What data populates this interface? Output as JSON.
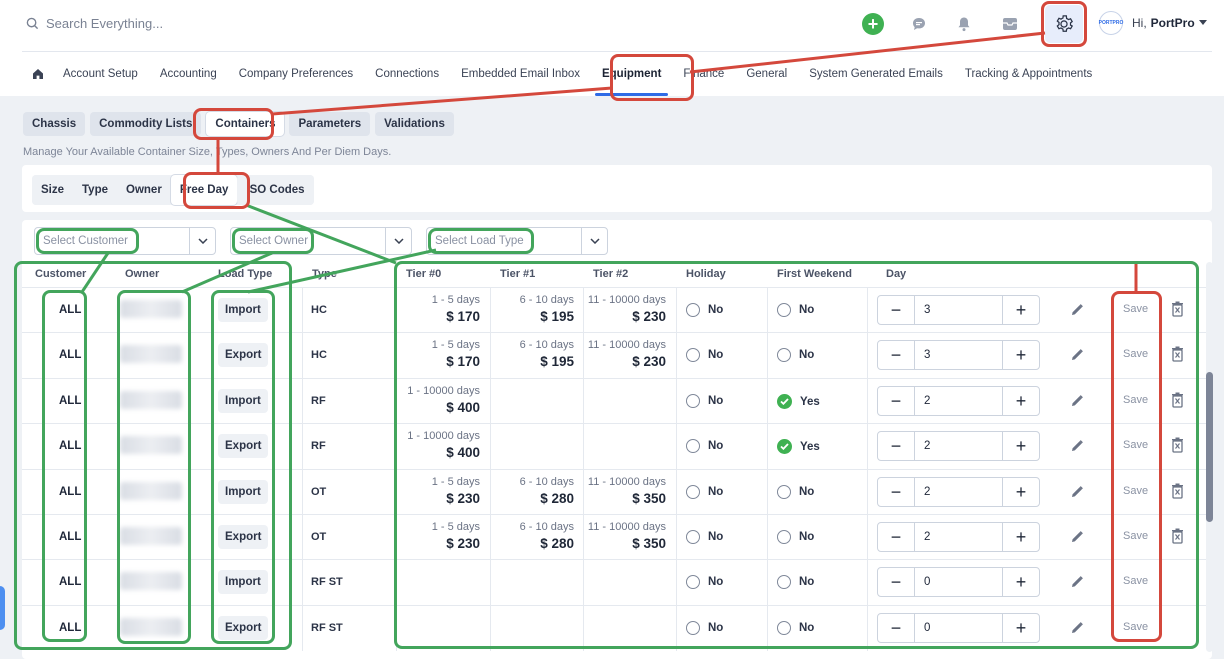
{
  "header": {
    "search_placeholder": "Search Everything...",
    "greeting_prefix": "Hi,",
    "user_name": "PortPro",
    "avatar_text": "PORTPRO"
  },
  "nav": {
    "items": [
      {
        "label": "Account Setup"
      },
      {
        "label": "Accounting"
      },
      {
        "label": "Company Preferences"
      },
      {
        "label": "Connections"
      },
      {
        "label": "Embedded Email Inbox"
      },
      {
        "label": "Equipment",
        "active": true
      },
      {
        "label": "Finance"
      },
      {
        "label": "General"
      },
      {
        "label": "System Generated Emails"
      },
      {
        "label": "Tracking & Appointments"
      }
    ]
  },
  "sub_tabs": [
    "Chassis",
    "Commodity Lists",
    "Containers",
    "Parameters",
    "Validations"
  ],
  "description": "Manage Your Available Container Size, Types, Owners And Per Diem Days.",
  "inner_tabs": [
    "Size",
    "Type",
    "Owner",
    "Free Day",
    "ISO Codes"
  ],
  "filters": {
    "customer_placeholder": "Select Customer",
    "owner_placeholder": "Select Owner",
    "load_type_placeholder": "Select Load Type"
  },
  "table": {
    "headers": [
      "Customer",
      "Owner",
      "Load Type",
      "Type",
      "Tier #0",
      "Tier #1",
      "Tier #2",
      "Holiday",
      "First Weekend",
      "Day"
    ],
    "save_label": "Save",
    "rows": [
      {
        "customer": "ALL",
        "load_type": "Import",
        "type": "HC",
        "t0d": "1 - 5 days",
        "t0p": "$ 170",
        "t1d": "6 - 10 days",
        "t1p": "$ 195",
        "t2d": "11 - 10000 days",
        "t2p": "$ 230",
        "holiday": "No",
        "first_weekend": "No",
        "fw_checked": false,
        "day": "3",
        "trash": true
      },
      {
        "customer": "ALL",
        "load_type": "Export",
        "type": "HC",
        "t0d": "1 - 5 days",
        "t0p": "$ 170",
        "t1d": "6 - 10 days",
        "t1p": "$ 195",
        "t2d": "11 - 10000 days",
        "t2p": "$ 230",
        "holiday": "No",
        "first_weekend": "No",
        "fw_checked": false,
        "day": "3",
        "trash": true
      },
      {
        "customer": "ALL",
        "load_type": "Import",
        "type": "RF",
        "t0d": "1 - 10000 days",
        "t0p": "$ 400",
        "t1d": "",
        "t1p": "",
        "t2d": "",
        "t2p": "",
        "holiday": "No",
        "first_weekend": "Yes",
        "fw_checked": true,
        "day": "2",
        "trash": true
      },
      {
        "customer": "ALL",
        "load_type": "Export",
        "type": "RF",
        "t0d": "1 - 10000 days",
        "t0p": "$ 400",
        "t1d": "",
        "t1p": "",
        "t2d": "",
        "t2p": "",
        "holiday": "No",
        "first_weekend": "Yes",
        "fw_checked": true,
        "day": "2",
        "trash": true
      },
      {
        "customer": "ALL",
        "load_type": "Import",
        "type": "OT",
        "t0d": "1 - 5 days",
        "t0p": "$ 230",
        "t1d": "6 - 10 days",
        "t1p": "$ 280",
        "t2d": "11 - 10000 days",
        "t2p": "$ 350",
        "holiday": "No",
        "first_weekend": "No",
        "fw_checked": false,
        "day": "2",
        "trash": true
      },
      {
        "customer": "ALL",
        "load_type": "Export",
        "type": "OT",
        "t0d": "1 - 5 days",
        "t0p": "$ 230",
        "t1d": "6 - 10 days",
        "t1p": "$ 280",
        "t2d": "11 - 10000 days",
        "t2p": "$ 350",
        "holiday": "No",
        "first_weekend": "No",
        "fw_checked": false,
        "day": "2",
        "trash": true
      },
      {
        "customer": "ALL",
        "load_type": "Import",
        "type": "RF ST",
        "t0d": "",
        "t0p": "",
        "t1d": "",
        "t1p": "",
        "t2d": "",
        "t2p": "",
        "holiday": "No",
        "first_weekend": "No",
        "fw_checked": false,
        "day": "0",
        "trash": false
      },
      {
        "customer": "ALL",
        "load_type": "Export",
        "type": "RF ST",
        "t0d": "",
        "t0p": "",
        "t1d": "",
        "t1p": "",
        "t2d": "",
        "t2p": "",
        "holiday": "No",
        "first_weekend": "No",
        "fw_checked": false,
        "day": "0",
        "trash": false
      }
    ]
  },
  "colors": {
    "accent": "#2e6be6",
    "success": "#3fb152",
    "annotation_red": "#d4483c",
    "annotation_green": "#43a55c"
  }
}
